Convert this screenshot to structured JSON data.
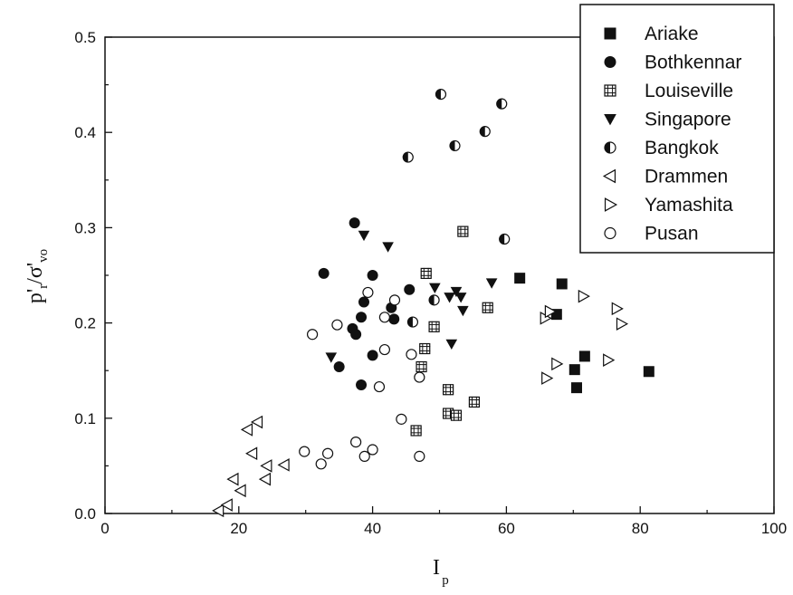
{
  "chart_data": {
    "type": "scatter",
    "xlabel": "I",
    "xlabel_sub": "p",
    "ylabel": "p'",
    "ylabel_sub1": "r",
    "ylabel_mid": "/σ'",
    "ylabel_sub2": "vo",
    "xlim": [
      0,
      100
    ],
    "ylim": [
      0,
      0.5
    ],
    "xticks": [
      0,
      20,
      40,
      60,
      80,
      100
    ],
    "yticks": [
      0.0,
      0.1,
      0.2,
      0.3,
      0.4,
      0.5
    ],
    "xtick_labels": [
      "0",
      "20",
      "40",
      "60",
      "80",
      "100"
    ],
    "ytick_labels": [
      "0.0",
      "0.1",
      "0.2",
      "0.3",
      "0.4",
      "0.5"
    ],
    "legend_position": "top-right",
    "grid": false,
    "series": [
      {
        "name": "Ariake",
        "marker": "filled-square",
        "points": [
          [
            62,
            0.247
          ],
          [
            68.3,
            0.241
          ],
          [
            67.5,
            0.209
          ],
          [
            71.7,
            0.165
          ],
          [
            70.2,
            0.151
          ],
          [
            70.5,
            0.132
          ],
          [
            81.3,
            0.149
          ]
        ]
      },
      {
        "name": "Bothkennar",
        "marker": "filled-circle",
        "points": [
          [
            32.7,
            0.252
          ],
          [
            37.3,
            0.305
          ],
          [
            40,
            0.25
          ],
          [
            37,
            0.194
          ],
          [
            37.5,
            0.188
          ],
          [
            38.3,
            0.206
          ],
          [
            38.7,
            0.222
          ],
          [
            42.8,
            0.216
          ],
          [
            43.2,
            0.204
          ],
          [
            45.5,
            0.235
          ],
          [
            35,
            0.154
          ],
          [
            40,
            0.166
          ],
          [
            38.3,
            0.135
          ]
        ]
      },
      {
        "name": "Louiseville",
        "marker": "crossed-square",
        "points": [
          [
            53.5,
            0.296
          ],
          [
            48,
            0.252
          ],
          [
            57.2,
            0.216
          ],
          [
            49.2,
            0.196
          ],
          [
            47.8,
            0.173
          ],
          [
            47.3,
            0.154
          ],
          [
            51.3,
            0.13
          ],
          [
            55.2,
            0.117
          ],
          [
            51.3,
            0.105
          ],
          [
            52.5,
            0.103
          ],
          [
            46.5,
            0.087
          ]
        ]
      },
      {
        "name": "Singapore",
        "marker": "filled-triangle-down",
        "points": [
          [
            38.7,
            0.292
          ],
          [
            42.3,
            0.28
          ],
          [
            49.3,
            0.237
          ],
          [
            51.5,
            0.227
          ],
          [
            52.5,
            0.233
          ],
          [
            53.2,
            0.227
          ],
          [
            53.5,
            0.213
          ],
          [
            57.8,
            0.242
          ],
          [
            51.8,
            0.178
          ],
          [
            33.8,
            0.164
          ]
        ]
      },
      {
        "name": "Bangkok",
        "marker": "half-circle",
        "points": [
          [
            50.2,
            0.44
          ],
          [
            59.3,
            0.43
          ],
          [
            56.8,
            0.401
          ],
          [
            52.3,
            0.386
          ],
          [
            45.3,
            0.374
          ],
          [
            59.7,
            0.288
          ],
          [
            49.2,
            0.224
          ],
          [
            46,
            0.201
          ]
        ]
      },
      {
        "name": "Drammen",
        "marker": "triangle-left",
        "points": [
          [
            17,
            0.003
          ],
          [
            18.3,
            0.009
          ],
          [
            19.2,
            0.036
          ],
          [
            20.3,
            0.024
          ],
          [
            21.3,
            0.088
          ],
          [
            22.8,
            0.096
          ],
          [
            22,
            0.063
          ],
          [
            24.2,
            0.05
          ],
          [
            24,
            0.036
          ],
          [
            26.8,
            0.051
          ]
        ]
      },
      {
        "name": "Yamashita",
        "marker": "triangle-right",
        "points": [
          [
            65.8,
            0.205
          ],
          [
            66.5,
            0.212
          ],
          [
            71.5,
            0.228
          ],
          [
            76.5,
            0.215
          ],
          [
            77.2,
            0.199
          ],
          [
            75.2,
            0.161
          ],
          [
            67.5,
            0.157
          ],
          [
            66,
            0.142
          ]
        ]
      },
      {
        "name": "Pusan",
        "marker": "open-circle",
        "points": [
          [
            39.3,
            0.232
          ],
          [
            41.8,
            0.206
          ],
          [
            43.3,
            0.224
          ],
          [
            34.7,
            0.198
          ],
          [
            31,
            0.188
          ],
          [
            41.8,
            0.172
          ],
          [
            45.8,
            0.167
          ],
          [
            47,
            0.143
          ],
          [
            41,
            0.133
          ],
          [
            44.3,
            0.099
          ],
          [
            37.5,
            0.075
          ],
          [
            29.8,
            0.065
          ],
          [
            33.3,
            0.063
          ],
          [
            32.3,
            0.052
          ],
          [
            38.8,
            0.06
          ],
          [
            40,
            0.067
          ],
          [
            47,
            0.06
          ]
        ]
      }
    ]
  }
}
